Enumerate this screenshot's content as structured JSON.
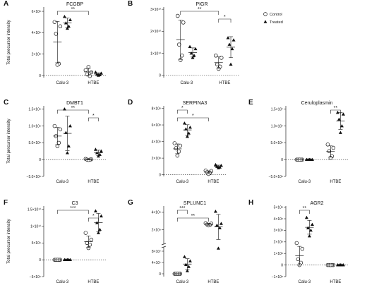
{
  "ylabel": "Total precursor intensity",
  "legend": {
    "control": "Control",
    "treated": "Treated"
  },
  "chart_data": [
    {
      "letter": "A",
      "title": "FCGBP",
      "type": "scatter",
      "categories": [
        "Calu-3",
        "HTBE"
      ],
      "ticks": [
        "0",
        "2×10⁸",
        "4×10⁸",
        "6×10⁸"
      ],
      "tickValues": [
        0,
        200000000,
        400000000,
        600000000
      ],
      "ylim": [
        -20000000,
        640000000
      ],
      "control": [
        [
          500000000.0,
          460000000.0,
          390000000.0,
          110000000.0,
          100000000.0
        ],
        [
          50000000.0,
          30000000.0,
          10000000.0,
          -5000000.0,
          80000000.0
        ]
      ],
      "treated": [
        [
          550000000.0,
          520000000.0,
          490000000.0,
          460000000.0,
          440000000.0
        ],
        [
          30000000.0,
          20000000.0,
          10000000.0,
          5000000.0,
          0.0
        ]
      ],
      "brackets": [
        {
          "from": 0,
          "to": 2,
          "label": "**"
        }
      ]
    },
    {
      "letter": "B",
      "title": "PIGR",
      "type": "scatter",
      "categories": [
        "Calu-3",
        "HTBE"
      ],
      "ticks": [
        "0",
        "1×10¹⁰",
        "2×10¹⁰",
        "3×10¹⁰"
      ],
      "tickValues": [
        0,
        10000000000,
        20000000000,
        30000000000
      ],
      "ylim": [
        -1000000000,
        31000000000
      ],
      "control": [
        [
          27000000000.0,
          24000000000.0,
          14000000000.0,
          9000000000.0,
          7000000000.0
        ],
        [
          9000000000.0,
          8000000000.0,
          5000000000.0,
          4000000000.0,
          3000000000.0
        ]
      ],
      "treated": [
        [
          13000000000.0,
          12000000000.0,
          10000000000.0,
          9000000000.0,
          8000000000.0
        ],
        [
          17000000000.0,
          16000000000.0,
          14000000000.0,
          12000000000.0,
          5000000000.0
        ]
      ],
      "brackets": [
        {
          "from": 0,
          "to": 2,
          "label": "**"
        },
        {
          "from": 2,
          "to": 3,
          "label": "*"
        }
      ]
    },
    {
      "letter": "C",
      "title": "DMBT1",
      "type": "scatter",
      "categories": [
        "Calu-3",
        "HTBE"
      ],
      "ticks": [
        "−5.0×10⁸",
        "0",
        "5.0×10⁸",
        "1.0×10⁹",
        "1.5×10⁹"
      ],
      "tickValues": [
        -500000000,
        0,
        500000000,
        1000000000,
        1500000000
      ],
      "ylim": [
        -500000000,
        1600000000
      ],
      "control": [
        [
          1000000000.0,
          900000000.0,
          700000000.0,
          500000000.0,
          400000000.0
        ],
        [
          20000000.0,
          10000000.0,
          0.0,
          0.0,
          -10000000.0
        ]
      ],
      "treated": [
        [
          1500000000.0,
          1000000000.0,
          800000000.0,
          400000000.0,
          200000000.0
        ],
        [
          300000000.0,
          250000000.0,
          200000000.0,
          150000000.0,
          100000000.0
        ]
      ],
      "brackets": [
        {
          "from": 0,
          "to": 2,
          "label": "**"
        },
        {
          "from": 2,
          "to": 3,
          "label": "*"
        }
      ]
    },
    {
      "letter": "D",
      "title": "SERPINA3",
      "type": "scatter",
      "categories": [
        "Calu-3",
        "HTBE"
      ],
      "ticks": [
        "0",
        "2×10⁸",
        "4×10⁸",
        "6×10⁸",
        "8×10⁸"
      ],
      "tickValues": [
        0,
        200000000,
        400000000,
        600000000,
        800000000
      ],
      "ylim": [
        -20000000,
        830000000
      ],
      "control": [
        [
          380000000.0,
          350000000.0,
          320000000.0,
          280000000.0,
          230000000.0
        ],
        [
          50000000.0,
          45000000.0,
          30000000.0,
          20000000.0,
          10000000.0
        ]
      ],
      "treated": [
        [
          620000000.0,
          570000000.0,
          550000000.0,
          500000000.0,
          460000000.0
        ],
        [
          120000000.0,
          110000000.0,
          100000000.0,
          90000000.0,
          80000000.0
        ]
      ],
      "brackets": [
        {
          "from": 0,
          "to": 1,
          "label": "*"
        },
        {
          "from": 0,
          "to": 2,
          "label": "*"
        }
      ]
    },
    {
      "letter": "E",
      "title": "Ceruloplasmin",
      "type": "scatter",
      "categories": [
        "Calu-3",
        "HTBE"
      ],
      "ticks": [
        "−5.0×10⁶",
        "0",
        "5.0×10⁶",
        "1.0×10⁷",
        "1.5×10⁷"
      ],
      "tickValues": [
        -5000000,
        0,
        5000000,
        10000000,
        15000000
      ],
      "ylim": [
        -5000000,
        16000000
      ],
      "control": [
        [
          0.0,
          0.0,
          0.0,
          0.0,
          0.0
        ],
        [
          4500000.0,
          3500000.0,
          2500000.0,
          1000000.0,
          500000.0
        ]
      ],
      "treated": [
        [
          0.0,
          0.0,
          0.0,
          0.0,
          0.0
        ],
        [
          14000000.0,
          13500000.0,
          12000000.0,
          10000000.0,
          8000000.0
        ]
      ],
      "brackets": [
        {
          "from": 2,
          "to": 3,
          "label": "**"
        }
      ]
    },
    {
      "letter": "F",
      "title": "C3",
      "type": "scatter",
      "categories": [
        "Calu-3",
        "HTBE"
      ],
      "ticks": [
        "−5×10⁹",
        "0",
        "5×10⁹",
        "1×10¹⁰",
        "1.5×10¹⁰"
      ],
      "tickValues": [
        -5000000000,
        0,
        5000000000,
        10000000000,
        15000000000
      ],
      "ylim": [
        -5000000000,
        16000000000
      ],
      "control": [
        [
          0.0,
          0.0,
          0.0,
          0.0,
          0.0
        ],
        [
          8000000000.0,
          6000000000.0,
          5000000000.0,
          4500000000.0,
          3500000000.0
        ]
      ],
      "treated": [
        [
          0.0,
          0.0,
          0.0,
          0.0,
          0.0
        ],
        [
          14500000000.0,
          13000000000.0,
          11000000000.0,
          9000000000.0,
          8000000000.0
        ]
      ],
      "brackets": [
        {
          "from": 0,
          "to": 2,
          "label": "***"
        },
        {
          "from": 2,
          "to": 3,
          "label": "*"
        }
      ]
    },
    {
      "letter": "G",
      "title": "SPLUNC1",
      "type": "scatter",
      "broken_axis": true,
      "categories": [
        "Calu-3",
        "HTBE"
      ],
      "ticks": [
        "0",
        "4×10⁷",
        "8×10⁷",
        "2×10⁹",
        "4×10⁹"
      ],
      "tickValues": [
        0,
        40000000,
        80000000,
        2000000000,
        4000000000
      ],
      "control": [
        [
          0.0,
          0.0,
          0.0,
          0.0,
          0.0
        ],
        [
          2750000000.0,
          2700000000.0,
          2600000000.0,
          2550000000.0,
          2500000000.0
        ]
      ],
      "treated": [
        [
          60000000.0,
          45000000.0,
          32000000.0,
          25000000.0,
          10000000.0
        ],
        [
          4100000000.0,
          2700000000.0,
          2500000000.0,
          2200000000.0,
          90000000.0
        ]
      ],
      "brackets": [
        {
          "from": 0,
          "to": 1,
          "label": "***"
        },
        {
          "from": 0,
          "to": 2,
          "label": "**"
        }
      ]
    },
    {
      "letter": "H",
      "title": "AGR2",
      "type": "scatter",
      "categories": [
        "Calu-3",
        "HTBE"
      ],
      "ticks": [
        "−1×10⁸",
        "0",
        "1×10⁸",
        "2×10⁸",
        "3×10⁸",
        "4×10⁸",
        "5×10⁸"
      ],
      "tickValues": [
        -100000000,
        0,
        100000000,
        200000000,
        300000000,
        400000000,
        500000000
      ],
      "ylim": [
        -100000000,
        510000000
      ],
      "control": [
        [
          190000000.0,
          140000000.0,
          50000000.0,
          20000000.0,
          0.0
        ],
        [
          0.0,
          0.0,
          0.0,
          0.0,
          0.0
        ]
      ],
      "treated": [
        [
          410000000.0,
          350000000.0,
          320000000.0,
          300000000.0,
          250000000.0
        ],
        [
          0.0,
          0.0,
          0.0,
          0.0,
          0.0
        ]
      ],
      "brackets": [
        {
          "from": 0,
          "to": 1,
          "label": "**"
        }
      ]
    }
  ]
}
